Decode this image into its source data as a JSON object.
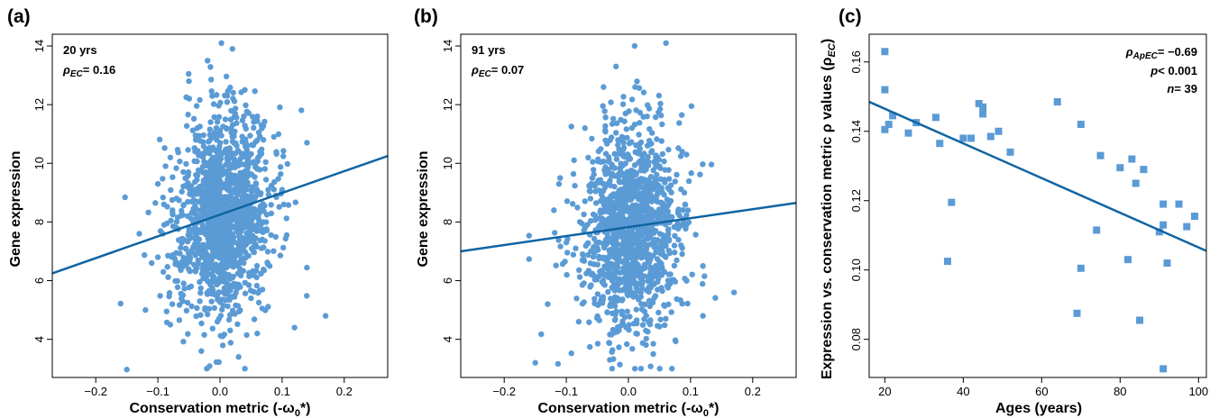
{
  "colors": {
    "points": "#5b9bd5",
    "fit_line": "#0f64a3",
    "axes": "#000000"
  },
  "chart_data": [
    {
      "type": "scatter",
      "panel_label": "(a)",
      "xlabel_main": "Conservation metric (-ω",
      "xlabel_sub": "0",
      "xlabel_tail": "*)",
      "ylabel": "Gene expression",
      "xlim": [
        -0.27,
        0.27
      ],
      "ylim": [
        2.7,
        14.4
      ],
      "xticks": [
        -0.2,
        -0.1,
        0.0,
        0.1,
        0.2
      ],
      "xtick_labels": [
        "−0.2",
        "−0.1",
        "0.0",
        "0.1",
        "0.2"
      ],
      "yticks": [
        4,
        6,
        8,
        10,
        12,
        14
      ],
      "ytick_labels": [
        "4",
        "6",
        "8",
        "10",
        "12",
        "14"
      ],
      "annotation_line1": "20 yrs",
      "annotation_rho": "ρ",
      "annotation_rho_sub": "EC",
      "annotation_rho_value": "= 0.16",
      "fit_line": {
        "x": [
          -0.27,
          0.27
        ],
        "y": [
          6.25,
          10.25
        ]
      },
      "points": [
        [
          -0.15,
          2.97
        ],
        [
          -0.12,
          5.0
        ],
        [
          -0.11,
          6.6
        ],
        [
          -0.1,
          9.3
        ],
        [
          -0.09,
          7.9
        ],
        [
          -0.08,
          4.5
        ],
        [
          -0.07,
          8.8
        ],
        [
          -0.06,
          5.3
        ],
        [
          -0.05,
          12.8
        ],
        [
          -0.04,
          10.4
        ],
        [
          -0.03,
          3.6
        ],
        [
          -0.02,
          13.5
        ],
        [
          -0.01,
          7.2
        ],
        [
          0.0,
          9.6
        ],
        [
          0.01,
          11.2
        ],
        [
          0.02,
          6.1
        ],
        [
          0.02,
          13.9
        ],
        [
          0.03,
          3.4
        ],
        [
          0.04,
          12.5
        ],
        [
          0.05,
          8.4
        ],
        [
          0.06,
          4.2
        ],
        [
          0.07,
          10.8
        ],
        [
          0.08,
          6.5
        ],
        [
          0.09,
          8.9
        ],
        [
          0.1,
          9.1
        ],
        [
          0.12,
          4.4
        ],
        [
          0.17,
          4.8
        ],
        [
          -0.13,
          7.6
        ],
        [
          -0.02,
          9.0
        ],
        [
          0.0,
          8.2
        ],
        [
          0.01,
          7.8
        ],
        [
          0.03,
          8.7
        ],
        [
          -0.05,
          6.8
        ],
        [
          0.05,
          5.4
        ],
        [
          -0.08,
          10.2
        ],
        [
          0.06,
          11.6
        ]
      ]
    },
    {
      "type": "scatter",
      "panel_label": "(b)",
      "xlabel_main": "Conservation metric (-ω",
      "xlabel_sub": "0",
      "xlabel_tail": "*)",
      "ylabel": "Gene expression",
      "xlim": [
        -0.27,
        0.27
      ],
      "ylim": [
        2.7,
        14.4
      ],
      "xticks": [
        -0.2,
        -0.1,
        0.0,
        0.1,
        0.2
      ],
      "xtick_labels": [
        "−0.2",
        "−0.1",
        "0.0",
        "0.1",
        "0.2"
      ],
      "yticks": [
        4,
        6,
        8,
        10,
        12,
        14
      ],
      "ytick_labels": [
        "4",
        "6",
        "8",
        "10",
        "12",
        "14"
      ],
      "annotation_line1": "91 yrs",
      "annotation_rho": "ρ",
      "annotation_rho_sub": "EC",
      "annotation_rho_value": "= 0.07",
      "fit_line": {
        "x": [
          -0.27,
          0.27
        ],
        "y": [
          7.0,
          8.65
        ]
      },
      "points": [
        [
          -0.15,
          3.2
        ],
        [
          -0.13,
          5.2
        ],
        [
          -0.11,
          9.5
        ],
        [
          -0.1,
          7.3
        ],
        [
          -0.08,
          4.6
        ],
        [
          -0.07,
          11.2
        ],
        [
          -0.05,
          6.1
        ],
        [
          -0.04,
          12.6
        ],
        [
          -0.03,
          3.3
        ],
        [
          -0.02,
          13.3
        ],
        [
          -0.01,
          8.8
        ],
        [
          0.0,
          10.2
        ],
        [
          0.01,
          14.0
        ],
        [
          0.02,
          5.6
        ],
        [
          0.03,
          11.6
        ],
        [
          0.04,
          3.5
        ],
        [
          0.05,
          9.9
        ],
        [
          0.06,
          6.8
        ],
        [
          0.07,
          3.0
        ],
        [
          0.08,
          8.3
        ],
        [
          0.09,
          9.0
        ],
        [
          0.12,
          6.5
        ],
        [
          0.12,
          4.8
        ],
        [
          0.17,
          5.6
        ],
        [
          -0.12,
          8.4
        ],
        [
          -0.02,
          7.6
        ],
        [
          0.0,
          8.0
        ],
        [
          0.02,
          7.2
        ],
        [
          -0.06,
          9.3
        ],
        [
          0.04,
          6.2
        ]
      ]
    },
    {
      "type": "scatter",
      "panel_label": "(c)",
      "xlabel": "Ages (years)",
      "ylabel_main": "Expression vs. conservation metric ρ values (ρ",
      "ylabel_sub": "EC",
      "ylabel_tail": ")",
      "xlim": [
        16,
        102
      ],
      "ylim": [
        0.069,
        0.168
      ],
      "xticks": [
        20,
        40,
        60,
        80,
        100
      ],
      "xtick_labels": [
        "20",
        "40",
        "60",
        "80",
        "100"
      ],
      "yticks": [
        0.08,
        0.1,
        0.12,
        0.14,
        0.16
      ],
      "ytick_labels": [
        "0.08",
        "0.10",
        "0.12",
        "0.14",
        "0.16"
      ],
      "annotation_rho": "ρ",
      "annotation_rho_sub": "ApEC",
      "annotation_rho_value": "= −0.69",
      "annotation_p": "p",
      "annotation_p_value": "< 0.001",
      "annotation_n": "n",
      "annotation_n_value": "= 39",
      "fit_line": {
        "x": [
          16,
          102
        ],
        "y": [
          0.1485,
          0.1055
        ]
      },
      "points": [
        [
          20,
          0.163
        ],
        [
          20,
          0.152
        ],
        [
          20,
          0.1405
        ],
        [
          21,
          0.142
        ],
        [
          22,
          0.1445
        ],
        [
          26,
          0.1395
        ],
        [
          28,
          0.1425
        ],
        [
          33,
          0.144
        ],
        [
          34,
          0.1365
        ],
        [
          36,
          0.1025
        ],
        [
          37,
          0.1195
        ],
        [
          40,
          0.138
        ],
        [
          42,
          0.138
        ],
        [
          44,
          0.148
        ],
        [
          45,
          0.147
        ],
        [
          45,
          0.145
        ],
        [
          47,
          0.1385
        ],
        [
          49,
          0.14
        ],
        [
          52,
          0.134
        ],
        [
          64,
          0.1485
        ],
        [
          69,
          0.0875
        ],
        [
          70,
          0.1005
        ],
        [
          70,
          0.142
        ],
        [
          74,
          0.1115
        ],
        [
          75,
          0.133
        ],
        [
          80,
          0.1295
        ],
        [
          82,
          0.103
        ],
        [
          83,
          0.132
        ],
        [
          84,
          0.125
        ],
        [
          85,
          0.0855
        ],
        [
          86,
          0.129
        ],
        [
          90,
          0.111
        ],
        [
          91,
          0.119
        ],
        [
          91,
          0.113
        ],
        [
          91,
          0.0715
        ],
        [
          92,
          0.102
        ],
        [
          95,
          0.119
        ],
        [
          97,
          0.1125
        ],
        [
          99,
          0.1155
        ]
      ]
    }
  ]
}
